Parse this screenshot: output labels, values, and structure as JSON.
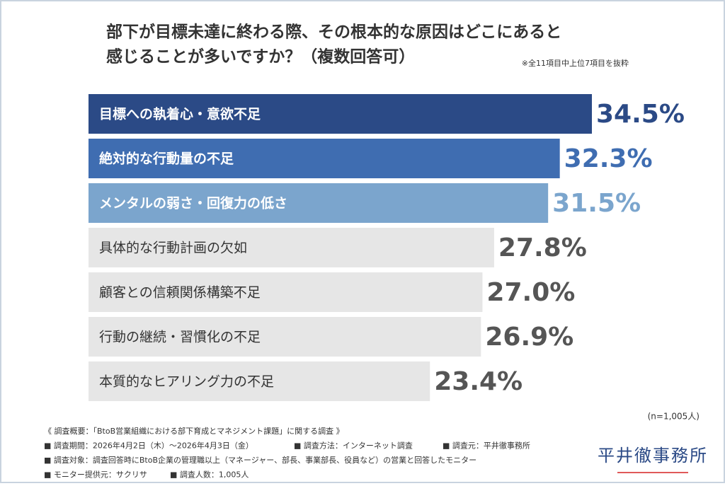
{
  "chart_data": {
    "type": "bar",
    "title": [
      "部下が目標未達に終わる際、その根本的な原因はどこにあると",
      "感じることが多いですか？（複数回答可）"
    ],
    "note": "※全11項目中上位7項目を抜粋",
    "categories": [
      "目標への執着心・意欲不足",
      "絶対的な行動量の不足",
      "メンタルの弱さ・回復力の低さ",
      "具体的な行動計画の欠如",
      "顧客との信頼関係構築不足",
      "行動の継続・習慣化の不足",
      "本質的なヒアリング力の不足"
    ],
    "values": [
      34.5,
      32.3,
      31.5,
      27.8,
      27.0,
      26.9,
      23.4
    ],
    "value_labels": [
      "34.5%",
      "32.3%",
      "31.5%",
      "27.8%",
      "27.0%",
      "26.9%",
      "23.4%"
    ],
    "colors": [
      "#2b4a86",
      "#3f6db1",
      "#7ba5cd",
      "#e6e6e6",
      "#e6e6e6",
      "#e6e6e6",
      "#e6e6e6"
    ],
    "label_colors": [
      "#ffffff",
      "#ffffff",
      "#ffffff",
      "#333333",
      "#333333",
      "#333333",
      "#333333"
    ],
    "value_colors": [
      "#2b4a86",
      "#3f6db1",
      "#7ba5cd",
      "#555555",
      "#555555",
      "#555555",
      "#555555"
    ]
  },
  "footer": {
    "sample_size": "(n=1,005人)",
    "notes": [
      [
        "《 調査概要：「BtoB営業組織における部下育成とマネジメント課題」に関する調査 》"
      ],
      [
        "■ 調査期間：2026年4月2日（木）〜2026年4月3日（金）",
        "■ 調査方法：インターネット調査",
        "■ 調査元：平井徹事務所"
      ],
      [
        "■ 調査対象：調査回答時にBtoB企業の管理職以上（マネージャー、部長、事業部長、役員など）の営業と回答したモニター"
      ],
      [
        "■ モニター提供元：サクリサ",
        "■ 調査人数：1,005人"
      ]
    ],
    "logo": "平井徹事務所"
  }
}
